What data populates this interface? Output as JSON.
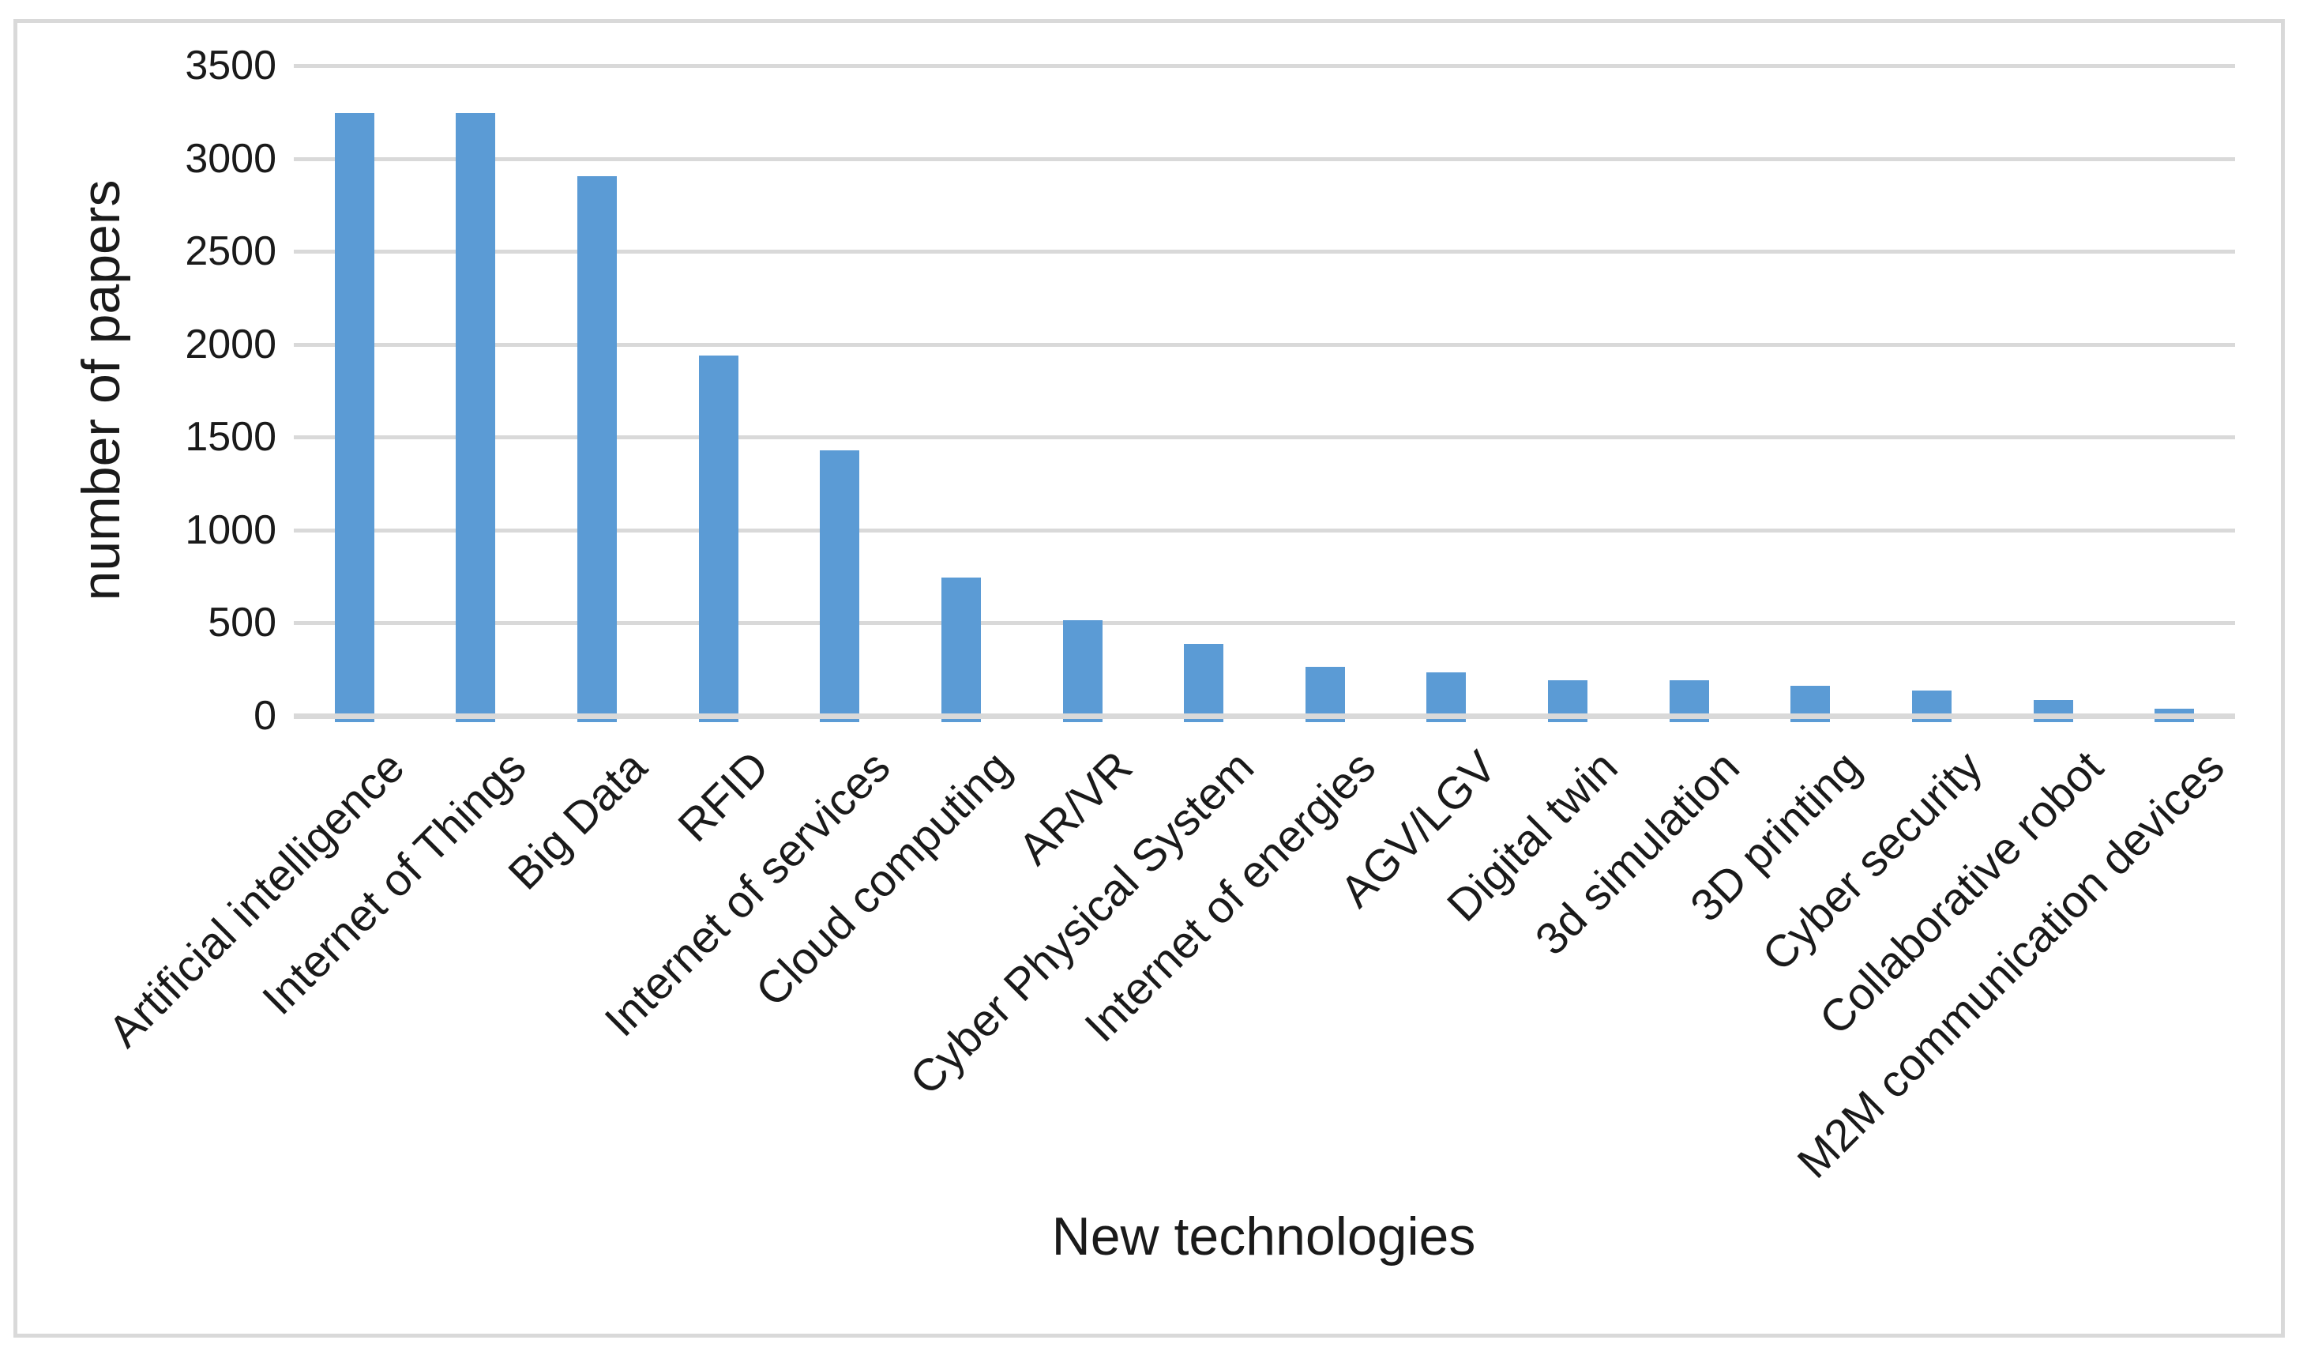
{
  "chart_data": {
    "type": "bar",
    "title": "",
    "xlabel": "New technologies",
    "ylabel": "number of papers",
    "categories": [
      "Artificial intelligence",
      "Internet of Things",
      "Big Data",
      "RFID",
      "Internet of services",
      "Cloud computing",
      "AR/VR",
      "Cyber Physical System",
      "Internet of energies",
      "AGV/LGV",
      "Digital twin",
      "3d simulation",
      "3D printing",
      "Cyber security",
      "Collaborative robot",
      "M2M communication devices"
    ],
    "values": [
      3245,
      3245,
      2905,
      1940,
      1430,
      745,
      515,
      385,
      265,
      235,
      190,
      190,
      160,
      135,
      85,
      40
    ],
    "ylim": [
      0,
      3500
    ],
    "ytick_interval": 500,
    "ytick_labels": [
      "0",
      "500",
      "1000",
      "1500",
      "2000",
      "2500",
      "3000",
      "3500"
    ],
    "grid": "horizontal",
    "legend": "none",
    "colors": {
      "bar": "#5B9BD5",
      "gridline": "#D9D9D9",
      "frame_border": "#D9D9D9",
      "text": "#1A1A1A",
      "background": "#FFFFFF"
    }
  }
}
